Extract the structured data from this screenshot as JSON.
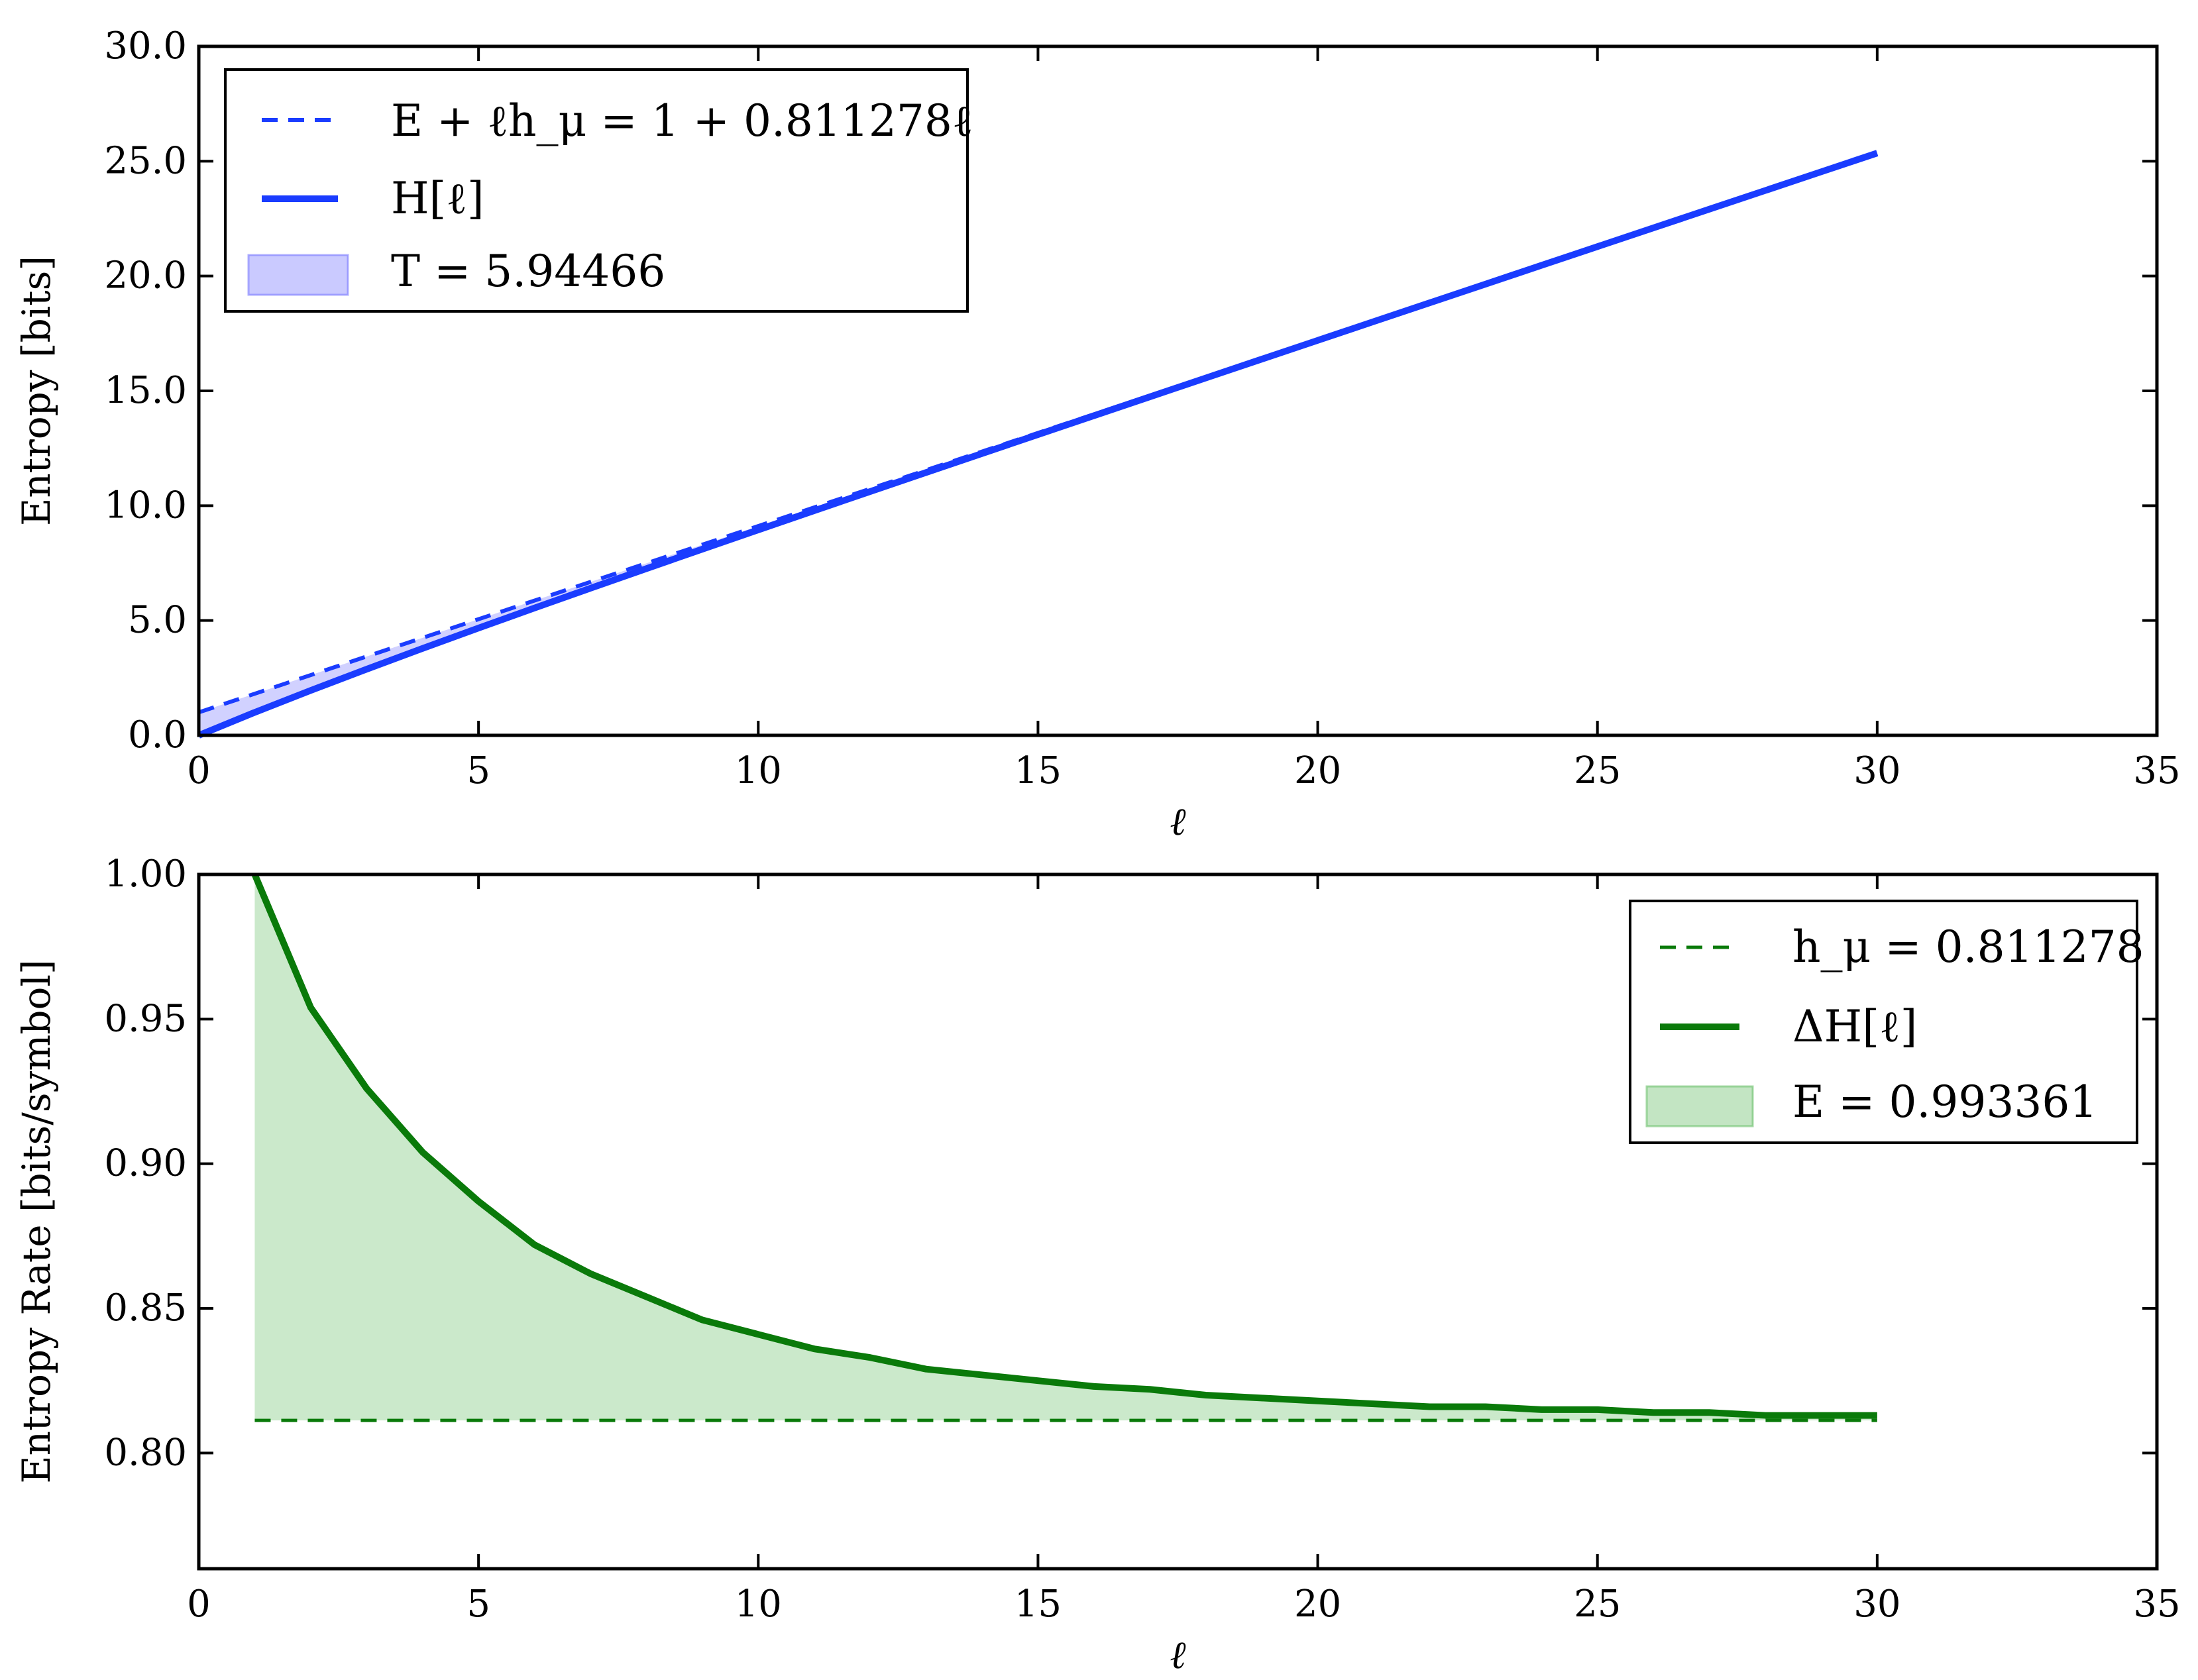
{
  "chart_data": [
    {
      "type": "line",
      "xlabel": "ℓ",
      "ylabel": "Entropy [bits]",
      "xlim": [
        0,
        35
      ],
      "ylim": [
        0,
        30
      ],
      "xticks": [
        "0",
        "5",
        "10",
        "15",
        "20",
        "25",
        "30",
        "35"
      ],
      "yticks": [
        "0.0",
        "5.0",
        "10.0",
        "15.0",
        "20.0",
        "25.0",
        "30.0"
      ],
      "grid": false,
      "legend_position": "top-left",
      "series": [
        {
          "name": "E + ℓh_μ = 1 + 0.811278ℓ",
          "style": "dashed",
          "color": "#1a3cff",
          "x": [
            0,
            30
          ],
          "y": [
            1.0,
            25.338
          ]
        },
        {
          "name": "H[ℓ]",
          "style": "solid",
          "color": "#1a3cff",
          "x": [
            0,
            1,
            2,
            3,
            4,
            5,
            6,
            7,
            8,
            9,
            10,
            11,
            12,
            13,
            14,
            15,
            16,
            17,
            18,
            19,
            20,
            21,
            22,
            23,
            24,
            25,
            26,
            27,
            28,
            29,
            30
          ],
          "y": [
            0,
            1.0,
            1.954,
            2.88,
            3.784,
            4.671,
            5.543,
            6.405,
            7.259,
            8.105,
            8.946,
            9.782,
            10.615,
            11.444,
            12.271,
            13.096,
            13.919,
            14.741,
            15.561,
            16.38,
            17.198,
            18.016,
            18.833,
            19.649,
            20.465,
            21.28,
            22.095,
            22.91,
            23.724,
            24.539,
            25.353
          ]
        },
        {
          "name": "T = 5.94466",
          "style": "fill",
          "color": "#7b7bff"
        }
      ]
    },
    {
      "type": "line",
      "xlabel": "ℓ",
      "ylabel": "Entropy Rate [bits/symbol]",
      "xlim": [
        0,
        35
      ],
      "ylim": [
        0.76,
        1.0
      ],
      "xticks": [
        "0",
        "5",
        "10",
        "15",
        "20",
        "25",
        "30",
        "35"
      ],
      "yticks": [
        "0.80",
        "0.85",
        "0.90",
        "0.95",
        "1.00"
      ],
      "grid": false,
      "legend_position": "top-right",
      "series": [
        {
          "name": "h_μ = 0.811278",
          "style": "dashed",
          "color": "#0a7a0a",
          "x": [
            1,
            30
          ],
          "y": [
            0.811278,
            0.811278
          ]
        },
        {
          "name": "ΔH[ℓ]",
          "style": "solid",
          "color": "#0a7a0a",
          "x": [
            1,
            2,
            3,
            4,
            5,
            6,
            7,
            8,
            9,
            10,
            11,
            12,
            13,
            14,
            15,
            16,
            17,
            18,
            19,
            20,
            21,
            22,
            23,
            24,
            25,
            26,
            27,
            28,
            29,
            30
          ],
          "y": [
            1.0,
            0.954,
            0.926,
            0.904,
            0.887,
            0.872,
            0.862,
            0.854,
            0.846,
            0.841,
            0.836,
            0.833,
            0.829,
            0.827,
            0.825,
            0.823,
            0.822,
            0.82,
            0.819,
            0.818,
            0.817,
            0.816,
            0.816,
            0.815,
            0.815,
            0.814,
            0.814,
            0.813,
            0.813,
            0.813
          ]
        },
        {
          "name": "E = 0.993361",
          "style": "fill",
          "color": "#6abf6a"
        }
      ]
    }
  ]
}
